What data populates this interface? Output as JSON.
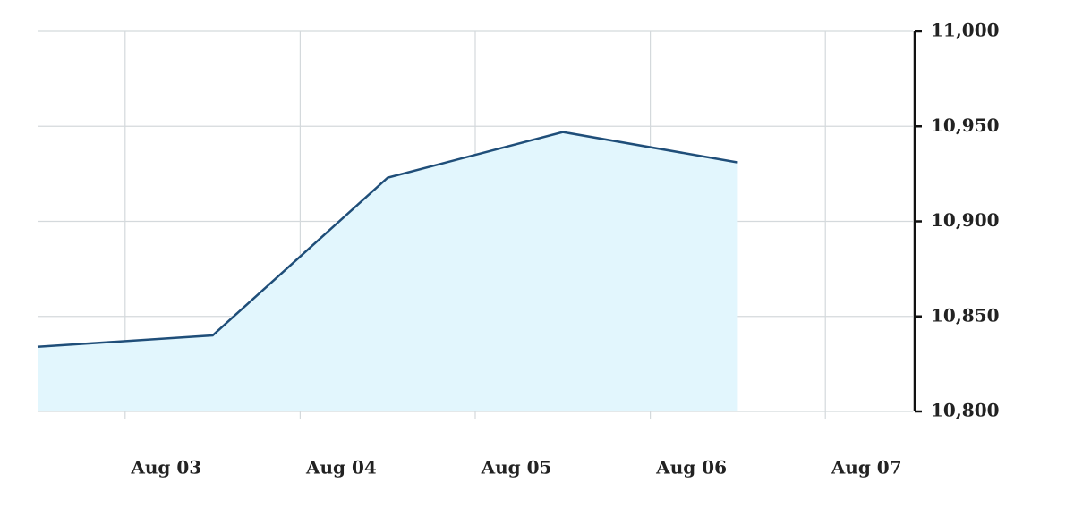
{
  "chart_data": {
    "type": "area",
    "x": [
      2.5,
      3.5,
      4.5,
      5.5,
      6.5
    ],
    "values": [
      10834,
      10840,
      10923,
      10947,
      10931
    ],
    "color": "#1f4e79",
    "fill": "#e2f6fd",
    "xlim": [
      2.5,
      7.5
    ],
    "xticks": [
      {
        "value": 3,
        "label": "Aug 03"
      },
      {
        "value": 4,
        "label": "Aug 04"
      },
      {
        "value": 5,
        "label": "Aug 05"
      },
      {
        "value": 6,
        "label": "Aug 06"
      },
      {
        "value": 7,
        "label": "Aug 07"
      }
    ],
    "ylim": [
      10800,
      11000
    ],
    "yticks": [
      {
        "value": 10800,
        "label": "10,800"
      },
      {
        "value": 10850,
        "label": "10,850"
      },
      {
        "value": 10900,
        "label": "10,900"
      },
      {
        "value": 10950,
        "label": "10,950"
      },
      {
        "value": 11000,
        "label": "11,000"
      }
    ],
    "grid": true,
    "y_axis_side": "right"
  }
}
